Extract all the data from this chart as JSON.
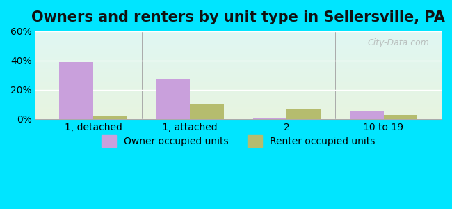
{
  "title": "Owners and renters by unit type in Sellersville, PA",
  "categories": [
    "1, detached",
    "1, attached",
    "2",
    "10 to 19"
  ],
  "owner_values": [
    39,
    27,
    1,
    5
  ],
  "renter_values": [
    2,
    10,
    7,
    3
  ],
  "owner_color": "#c9a0dc",
  "renter_color": "#b5bc6e",
  "ylim": [
    0,
    60
  ],
  "yticks": [
    0,
    20,
    40,
    60
  ],
  "ytick_labels": [
    "0%",
    "20%",
    "40%",
    "60%"
  ],
  "bar_width": 0.35,
  "outer_bg": "#00e5ff",
  "legend_labels": [
    "Owner occupied units",
    "Renter occupied units"
  ],
  "watermark": "City-Data.com",
  "title_fontsize": 15,
  "axis_fontsize": 10,
  "legend_fontsize": 10
}
